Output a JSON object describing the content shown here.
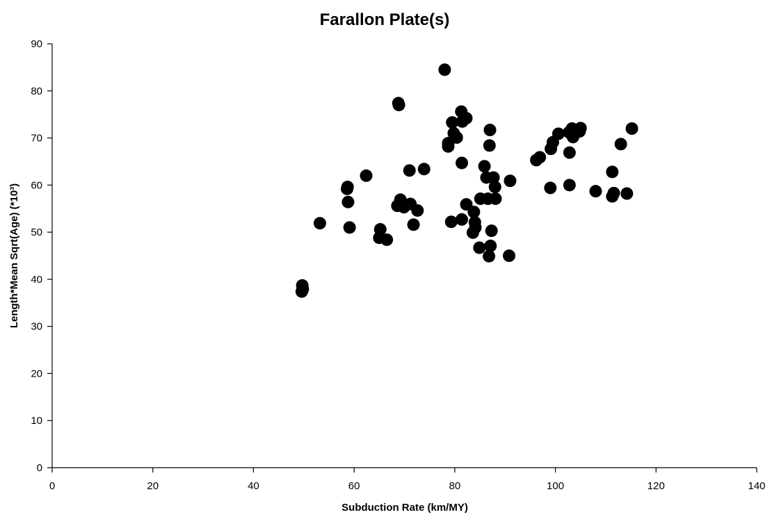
{
  "chart_data": {
    "type": "scatter",
    "title": "Farallon Plate(s)",
    "xlabel": "Subduction Rate (km/MY)",
    "ylabel": "Length*Mean Sqrt(Age) (*10³)",
    "xlim": [
      0,
      140
    ],
    "ylim": [
      0,
      90
    ],
    "x_ticks": [
      0,
      20,
      40,
      60,
      80,
      100,
      120,
      140
    ],
    "y_ticks": [
      0,
      10,
      20,
      30,
      40,
      50,
      60,
      70,
      80,
      90
    ],
    "grid": false,
    "marker_color": "#000000",
    "points": [
      {
        "x": 49.7,
        "y": 38.7
      },
      {
        "x": 49.8,
        "y": 37.9
      },
      {
        "x": 49.6,
        "y": 37.4
      },
      {
        "x": 53.2,
        "y": 51.9
      },
      {
        "x": 58.7,
        "y": 59.6
      },
      {
        "x": 58.6,
        "y": 59.2
      },
      {
        "x": 58.8,
        "y": 56.4
      },
      {
        "x": 59.1,
        "y": 51.0
      },
      {
        "x": 62.4,
        "y": 62.0
      },
      {
        "x": 65.2,
        "y": 50.6
      },
      {
        "x": 65.0,
        "y": 48.8
      },
      {
        "x": 66.5,
        "y": 48.4
      },
      {
        "x": 68.6,
        "y": 55.6
      },
      {
        "x": 69.2,
        "y": 56.9
      },
      {
        "x": 69.9,
        "y": 55.3
      },
      {
        "x": 68.8,
        "y": 77.4
      },
      {
        "x": 68.9,
        "y": 77.0
      },
      {
        "x": 71.0,
        "y": 63.1
      },
      {
        "x": 71.2,
        "y": 56.0
      },
      {
        "x": 71.8,
        "y": 51.6
      },
      {
        "x": 72.6,
        "y": 54.6
      },
      {
        "x": 73.9,
        "y": 63.4
      },
      {
        "x": 78.0,
        "y": 84.5
      },
      {
        "x": 78.7,
        "y": 68.9
      },
      {
        "x": 78.7,
        "y": 68.2
      },
      {
        "x": 79.3,
        "y": 52.2
      },
      {
        "x": 79.5,
        "y": 73.3
      },
      {
        "x": 79.8,
        "y": 71.0
      },
      {
        "x": 80.4,
        "y": 70.1
      },
      {
        "x": 81.3,
        "y": 75.6
      },
      {
        "x": 81.5,
        "y": 73.5
      },
      {
        "x": 82.3,
        "y": 74.2
      },
      {
        "x": 81.4,
        "y": 64.7
      },
      {
        "x": 81.4,
        "y": 52.7
      },
      {
        "x": 82.3,
        "y": 55.9
      },
      {
        "x": 83.8,
        "y": 54.3
      },
      {
        "x": 84.0,
        "y": 52.1
      },
      {
        "x": 84.1,
        "y": 51.0
      },
      {
        "x": 83.6,
        "y": 49.9
      },
      {
        "x": 85.1,
        "y": 57.1
      },
      {
        "x": 84.9,
        "y": 46.7
      },
      {
        "x": 85.9,
        "y": 64.0
      },
      {
        "x": 86.3,
        "y": 61.6
      },
      {
        "x": 86.6,
        "y": 57.1
      },
      {
        "x": 87.0,
        "y": 71.7
      },
      {
        "x": 86.9,
        "y": 68.4
      },
      {
        "x": 87.7,
        "y": 61.6
      },
      {
        "x": 88.0,
        "y": 59.6
      },
      {
        "x": 88.1,
        "y": 57.1
      },
      {
        "x": 87.3,
        "y": 50.3
      },
      {
        "x": 87.1,
        "y": 47.1
      },
      {
        "x": 86.8,
        "y": 44.9
      },
      {
        "x": 91.0,
        "y": 60.9
      },
      {
        "x": 90.8,
        "y": 45.0
      },
      {
        "x": 96.2,
        "y": 65.3
      },
      {
        "x": 96.9,
        "y": 65.9
      },
      {
        "x": 99.1,
        "y": 67.7
      },
      {
        "x": 99.5,
        "y": 69.1
      },
      {
        "x": 100.6,
        "y": 70.9
      },
      {
        "x": 99.0,
        "y": 59.4
      },
      {
        "x": 102.7,
        "y": 71.2
      },
      {
        "x": 103.3,
        "y": 72.0
      },
      {
        "x": 103.5,
        "y": 70.2
      },
      {
        "x": 104.8,
        "y": 71.4
      },
      {
        "x": 105.0,
        "y": 72.1
      },
      {
        "x": 102.8,
        "y": 66.9
      },
      {
        "x": 102.8,
        "y": 60.0
      },
      {
        "x": 108.0,
        "y": 58.7
      },
      {
        "x": 111.3,
        "y": 62.8
      },
      {
        "x": 111.6,
        "y": 58.3
      },
      {
        "x": 111.3,
        "y": 57.6
      },
      {
        "x": 113.0,
        "y": 68.7
      },
      {
        "x": 114.2,
        "y": 58.2
      },
      {
        "x": 115.2,
        "y": 72.0
      }
    ]
  }
}
